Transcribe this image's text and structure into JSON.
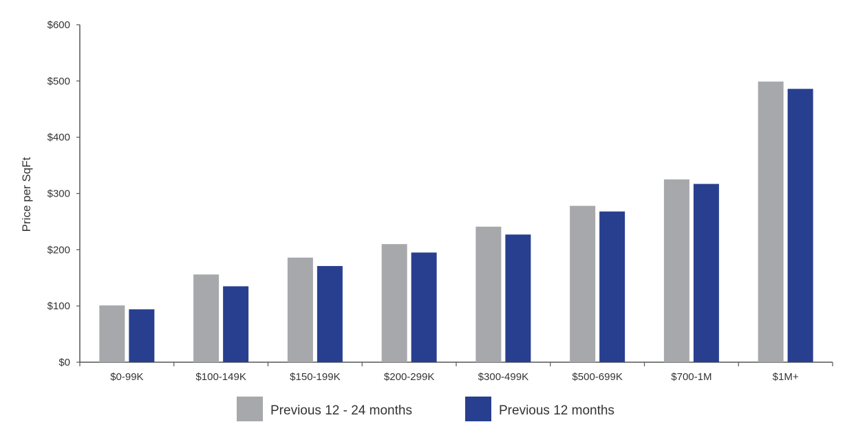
{
  "chart_data": {
    "type": "bar",
    "title": "",
    "xlabel": "",
    "ylabel": "Price per SqFt",
    "ylim": [
      0,
      600
    ],
    "y_ticks": [
      {
        "value": 0,
        "label": "$0"
      },
      {
        "value": 100,
        "label": "$100"
      },
      {
        "value": 200,
        "label": "$200"
      },
      {
        "value": 300,
        "label": "$300"
      },
      {
        "value": 400,
        "label": "$400"
      },
      {
        "value": 500,
        "label": "$500"
      },
      {
        "value": 600,
        "label": "$600"
      }
    ],
    "categories": [
      "$0-99K",
      "$100-149K",
      "$150-199K",
      "$200-299K",
      "$300-499K",
      "$500-699K",
      "$700-1M",
      "$1M+"
    ],
    "series": [
      {
        "name": "Previous 12 - 24 months",
        "color": "#a7a8ab",
        "values": [
          101,
          156,
          186,
          210,
          241,
          278,
          325,
          499
        ]
      },
      {
        "name": "Previous 12 months",
        "color": "#283f8f",
        "values": [
          94,
          135,
          171,
          195,
          227,
          268,
          317,
          486
        ]
      }
    ],
    "grid": false,
    "legend_position": "bottom-center"
  }
}
